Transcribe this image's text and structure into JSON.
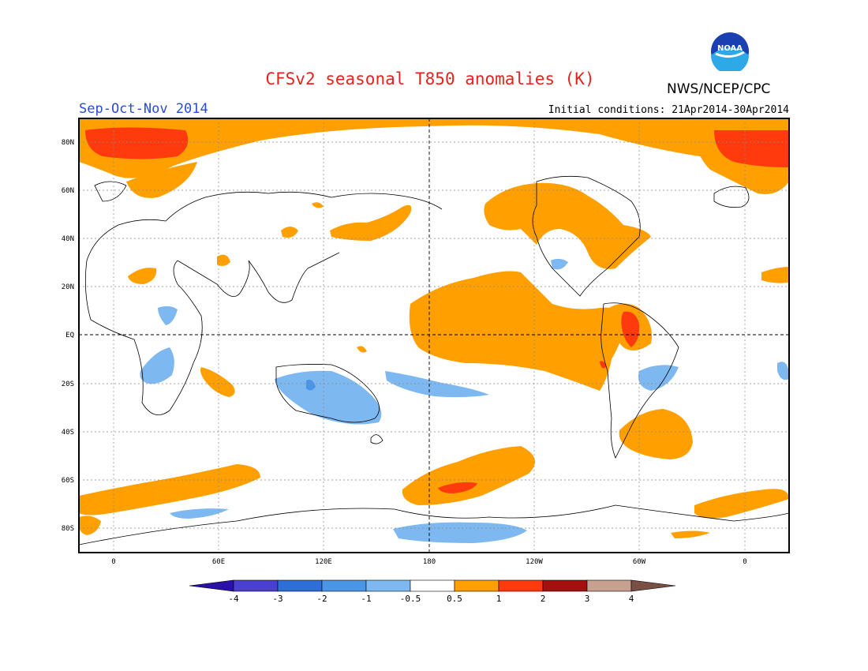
{
  "header": {
    "title": "CFSv2 seasonal T850 anomalies (K)",
    "season": "Sep-Oct-Nov 2014",
    "initial_conditions": "Initial conditions: 21Apr2014-30Apr2014",
    "agency": "NWS/NCEP/CPC",
    "logo_text": "NOAA"
  },
  "axes": {
    "lat_labels": [
      "80N",
      "60N",
      "40N",
      "20N",
      "EQ",
      "20S",
      "40S",
      "60S",
      "80S"
    ],
    "lon_labels": [
      "0",
      "60E",
      "120E",
      "180",
      "120W",
      "60W",
      "0"
    ]
  },
  "colorbar": {
    "labels": [
      "-4",
      "-3",
      "-2",
      "-1",
      "-0.5",
      "0.5",
      "1",
      "2",
      "3",
      "4"
    ],
    "colors": [
      "#2a0fa8",
      "#4a3fd1",
      "#2f6ed9",
      "#4b95e6",
      "#7db8f0",
      "#ffffff",
      "#ff9f00",
      "#ff3a0c",
      "#a50f0f",
      "#c8a090",
      "#7a5044"
    ]
  },
  "colors": {
    "orange": "#ff9f00",
    "red": "#ff3a0c",
    "light_blue": "#7db8f0",
    "mid_blue": "#4b95e6"
  }
}
